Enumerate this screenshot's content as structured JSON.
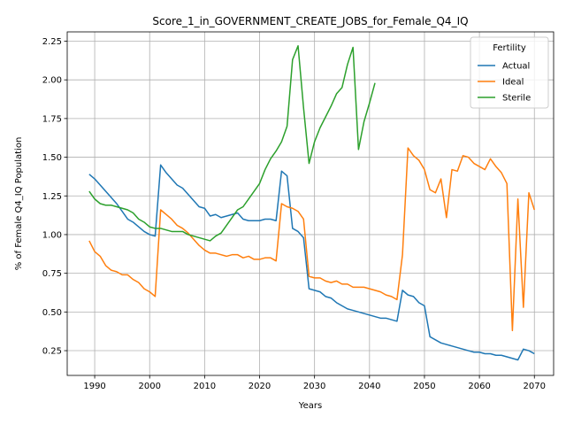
{
  "chart_data": {
    "type": "line",
    "title": "Score_1_in_GOVERNMENT_CREATE_JOBS_for_Female_Q4_IQ",
    "xlabel": "Years",
    "ylabel": "% of Female Q4_IQ Population",
    "xlim": [
      1985,
      2073.5
    ],
    "ylim": [
      0.09,
      2.31
    ],
    "x_ticks": [
      1990,
      2000,
      2010,
      2020,
      2030,
      2040,
      2050,
      2060,
      2070
    ],
    "y_ticks": [
      0.25,
      0.5,
      0.75,
      1.0,
      1.25,
      1.5,
      1.75,
      2.0,
      2.25
    ],
    "x_tick_labels": [
      "1990",
      "2000",
      "2010",
      "2020",
      "2030",
      "2040",
      "2050",
      "2060",
      "2070"
    ],
    "y_tick_labels": [
      "0.25",
      "0.50",
      "0.75",
      "1.00",
      "1.25",
      "1.50",
      "1.75",
      "2.00",
      "2.25"
    ],
    "grid": true,
    "legend": {
      "title": "Fertility",
      "position": "upper-right"
    },
    "series": [
      {
        "name": "Actual",
        "color": "#1f77b4",
        "points": [
          [
            1989,
            1.39
          ],
          [
            1990,
            1.36
          ],
          [
            1991,
            1.32
          ],
          [
            1992,
            1.28
          ],
          [
            1993,
            1.24
          ],
          [
            1994,
            1.2
          ],
          [
            1995,
            1.15
          ],
          [
            1996,
            1.1
          ],
          [
            1997,
            1.08
          ],
          [
            1998,
            1.05
          ],
          [
            1999,
            1.02
          ],
          [
            2000,
            1.0
          ],
          [
            2001,
            0.99
          ],
          [
            2002,
            1.45
          ],
          [
            2003,
            1.4
          ],
          [
            2004,
            1.36
          ],
          [
            2005,
            1.32
          ],
          [
            2006,
            1.3
          ],
          [
            2007,
            1.26
          ],
          [
            2008,
            1.22
          ],
          [
            2009,
            1.18
          ],
          [
            2010,
            1.17
          ],
          [
            2011,
            1.12
          ],
          [
            2012,
            1.13
          ],
          [
            2013,
            1.11
          ],
          [
            2014,
            1.12
          ],
          [
            2015,
            1.13
          ],
          [
            2016,
            1.14
          ],
          [
            2017,
            1.1
          ],
          [
            2018,
            1.09
          ],
          [
            2019,
            1.09
          ],
          [
            2020,
            1.09
          ],
          [
            2021,
            1.1
          ],
          [
            2022,
            1.1
          ],
          [
            2023,
            1.09
          ],
          [
            2024,
            1.41
          ],
          [
            2025,
            1.38
          ],
          [
            2026,
            1.04
          ],
          [
            2027,
            1.02
          ],
          [
            2028,
            0.98
          ],
          [
            2029,
            0.65
          ],
          [
            2030,
            0.64
          ],
          [
            2031,
            0.63
          ],
          [
            2032,
            0.6
          ],
          [
            2033,
            0.59
          ],
          [
            2034,
            0.56
          ],
          [
            2035,
            0.54
          ],
          [
            2036,
            0.52
          ],
          [
            2037,
            0.51
          ],
          [
            2038,
            0.5
          ],
          [
            2039,
            0.49
          ],
          [
            2040,
            0.48
          ],
          [
            2041,
            0.47
          ],
          [
            2042,
            0.46
          ],
          [
            2043,
            0.46
          ],
          [
            2044,
            0.45
          ],
          [
            2045,
            0.44
          ],
          [
            2046,
            0.64
          ],
          [
            2047,
            0.61
          ],
          [
            2048,
            0.6
          ],
          [
            2049,
            0.56
          ],
          [
            2050,
            0.54
          ],
          [
            2051,
            0.34
          ],
          [
            2052,
            0.32
          ],
          [
            2053,
            0.3
          ],
          [
            2054,
            0.29
          ],
          [
            2055,
            0.28
          ],
          [
            2056,
            0.27
          ],
          [
            2057,
            0.26
          ],
          [
            2058,
            0.25
          ],
          [
            2059,
            0.24
          ],
          [
            2060,
            0.24
          ],
          [
            2061,
            0.23
          ],
          [
            2062,
            0.23
          ],
          [
            2063,
            0.22
          ],
          [
            2064,
            0.22
          ],
          [
            2065,
            0.21
          ],
          [
            2066,
            0.2
          ],
          [
            2067,
            0.19
          ],
          [
            2068,
            0.26
          ],
          [
            2069,
            0.25
          ],
          [
            2070,
            0.23
          ]
        ]
      },
      {
        "name": "Ideal",
        "color": "#ff7f0e",
        "points": [
          [
            1989,
            0.96
          ],
          [
            1990,
            0.89
          ],
          [
            1991,
            0.86
          ],
          [
            1992,
            0.8
          ],
          [
            1993,
            0.77
          ],
          [
            1994,
            0.76
          ],
          [
            1995,
            0.74
          ],
          [
            1996,
            0.74
          ],
          [
            1997,
            0.71
          ],
          [
            1998,
            0.69
          ],
          [
            1999,
            0.65
          ],
          [
            2000,
            0.63
          ],
          [
            2001,
            0.6
          ],
          [
            2002,
            1.16
          ],
          [
            2003,
            1.13
          ],
          [
            2004,
            1.1
          ],
          [
            2005,
            1.06
          ],
          [
            2006,
            1.04
          ],
          [
            2007,
            1.01
          ],
          [
            2008,
            0.97
          ],
          [
            2009,
            0.93
          ],
          [
            2010,
            0.9
          ],
          [
            2011,
            0.88
          ],
          [
            2012,
            0.88
          ],
          [
            2013,
            0.87
          ],
          [
            2014,
            0.86
          ],
          [
            2015,
            0.87
          ],
          [
            2016,
            0.87
          ],
          [
            2017,
            0.85
          ],
          [
            2018,
            0.86
          ],
          [
            2019,
            0.84
          ],
          [
            2020,
            0.84
          ],
          [
            2021,
            0.85
          ],
          [
            2022,
            0.85
          ],
          [
            2023,
            0.83
          ],
          [
            2024,
            1.2
          ],
          [
            2025,
            1.18
          ],
          [
            2026,
            1.17
          ],
          [
            2027,
            1.15
          ],
          [
            2028,
            1.1
          ],
          [
            2029,
            0.73
          ],
          [
            2030,
            0.72
          ],
          [
            2031,
            0.72
          ],
          [
            2032,
            0.7
          ],
          [
            2033,
            0.69
          ],
          [
            2034,
            0.7
          ],
          [
            2035,
            0.68
          ],
          [
            2036,
            0.68
          ],
          [
            2037,
            0.66
          ],
          [
            2038,
            0.66
          ],
          [
            2039,
            0.66
          ],
          [
            2040,
            0.65
          ],
          [
            2041,
            0.64
          ],
          [
            2042,
            0.63
          ],
          [
            2043,
            0.61
          ],
          [
            2044,
            0.6
          ],
          [
            2045,
            0.58
          ],
          [
            2046,
            0.87
          ],
          [
            2047,
            1.56
          ],
          [
            2048,
            1.51
          ],
          [
            2049,
            1.48
          ],
          [
            2050,
            1.42
          ],
          [
            2051,
            1.29
          ],
          [
            2052,
            1.27
          ],
          [
            2053,
            1.36
          ],
          [
            2054,
            1.11
          ],
          [
            2055,
            1.42
          ],
          [
            2056,
            1.41
          ],
          [
            2057,
            1.51
          ],
          [
            2058,
            1.5
          ],
          [
            2059,
            1.46
          ],
          [
            2060,
            1.44
          ],
          [
            2061,
            1.42
          ],
          [
            2062,
            1.49
          ],
          [
            2063,
            1.44
          ],
          [
            2064,
            1.4
          ],
          [
            2065,
            1.33
          ],
          [
            2066,
            0.38
          ],
          [
            2067,
            1.23
          ],
          [
            2068,
            0.53
          ],
          [
            2069,
            1.27
          ],
          [
            2070,
            1.16
          ]
        ]
      },
      {
        "name": "Sterile",
        "color": "#2ca02c",
        "points": [
          [
            1989,
            1.28
          ],
          [
            1990,
            1.23
          ],
          [
            1991,
            1.2
          ],
          [
            1992,
            1.19
          ],
          [
            1993,
            1.19
          ],
          [
            1994,
            1.18
          ],
          [
            1995,
            1.17
          ],
          [
            1996,
            1.16
          ],
          [
            1997,
            1.14
          ],
          [
            1998,
            1.1
          ],
          [
            1999,
            1.08
          ],
          [
            2000,
            1.05
          ],
          [
            2001,
            1.04
          ],
          [
            2002,
            1.04
          ],
          [
            2003,
            1.03
          ],
          [
            2004,
            1.02
          ],
          [
            2005,
            1.02
          ],
          [
            2006,
            1.02
          ],
          [
            2007,
            1.0
          ],
          [
            2008,
            0.99
          ],
          [
            2009,
            0.98
          ],
          [
            2010,
            0.97
          ],
          [
            2011,
            0.96
          ],
          [
            2012,
            0.99
          ],
          [
            2013,
            1.01
          ],
          [
            2014,
            1.06
          ],
          [
            2015,
            1.11
          ],
          [
            2016,
            1.16
          ],
          [
            2017,
            1.18
          ],
          [
            2018,
            1.23
          ],
          [
            2019,
            1.28
          ],
          [
            2020,
            1.33
          ],
          [
            2021,
            1.42
          ],
          [
            2022,
            1.49
          ],
          [
            2023,
            1.54
          ],
          [
            2024,
            1.6
          ],
          [
            2025,
            1.7
          ],
          [
            2026,
            2.13
          ],
          [
            2027,
            2.22
          ],
          [
            2028,
            1.82
          ],
          [
            2029,
            1.46
          ],
          [
            2030,
            1.6
          ],
          [
            2031,
            1.69
          ],
          [
            2032,
            1.76
          ],
          [
            2033,
            1.83
          ],
          [
            2034,
            1.91
          ],
          [
            2035,
            1.95
          ],
          [
            2036,
            2.1
          ],
          [
            2037,
            2.21
          ],
          [
            2038,
            1.55
          ],
          [
            2039,
            1.73
          ],
          [
            2040,
            1.85
          ],
          [
            2041,
            1.98
          ]
        ]
      }
    ]
  }
}
